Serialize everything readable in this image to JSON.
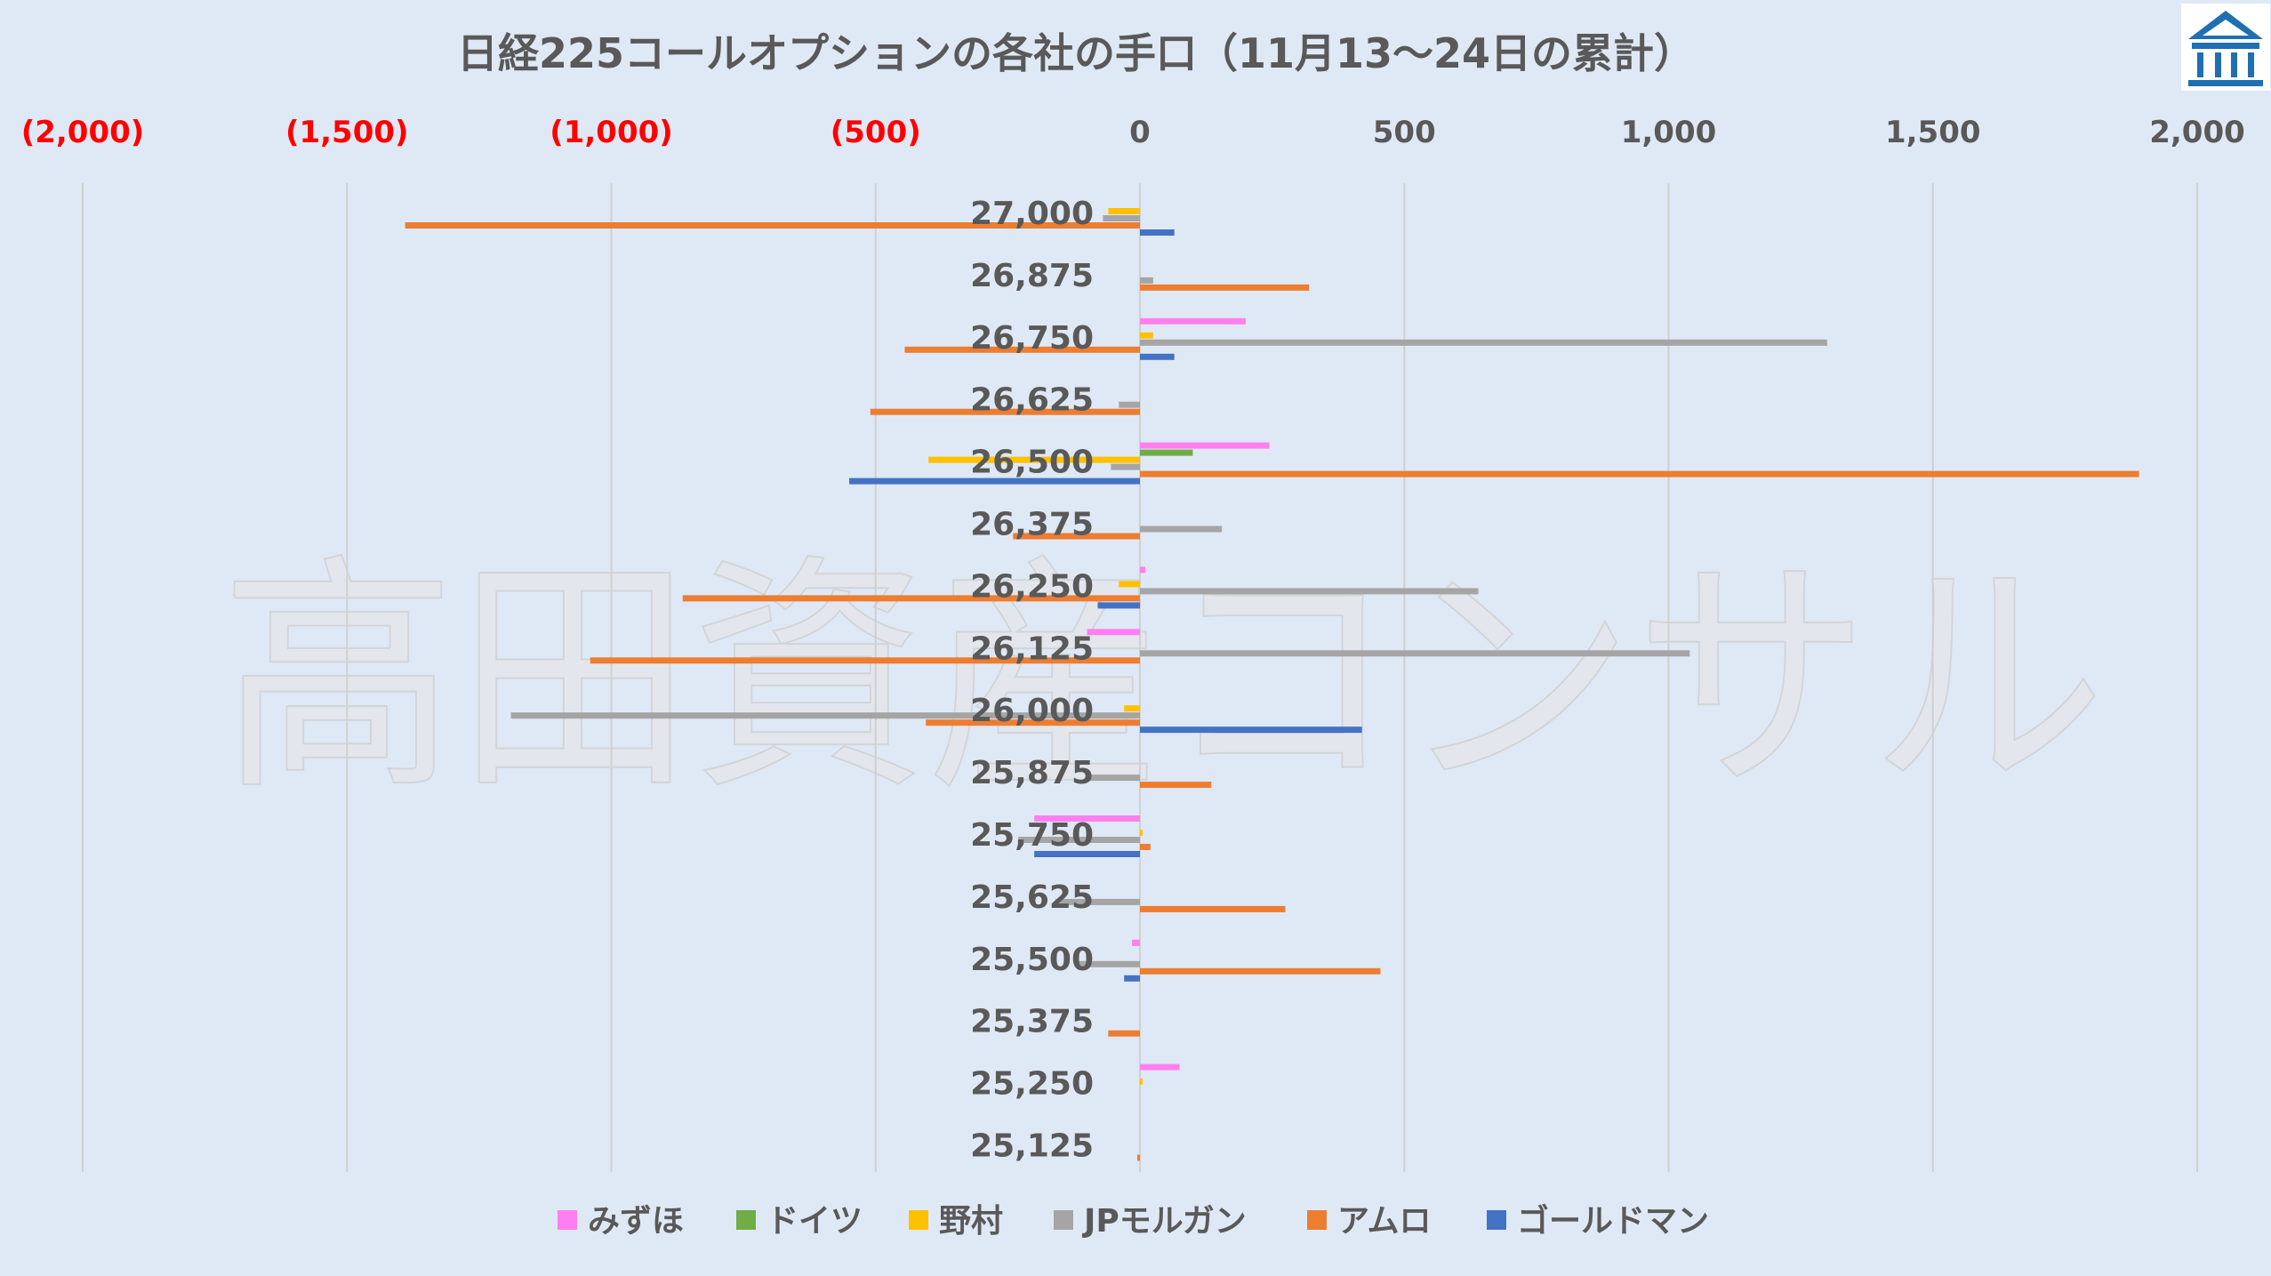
{
  "header": {
    "title": "日経225コールオプションの各社の手口（11月13〜24日の累計）"
  },
  "watermark": {
    "text": "高田資産コンサル"
  },
  "colors": {
    "みずほ": "#ff7ff0",
    "ドイツ": "#70ad47",
    "野村": "#ffc000",
    "JPモルガン": "#a5a5a5",
    "アムロ": "#ed7d31",
    "ゴールドマン": "#4472c4",
    "negative_tick": "#ff0000",
    "positive_tick": "#595959",
    "logo": "#1f6fb2"
  },
  "logo": {
    "icon": "building-logo-icon"
  },
  "chart_data": {
    "type": "bar",
    "orientation": "horizontal",
    "title": "日経225コールオプションの各社の手口（11月13〜24日の累計）",
    "xlim": [
      -2000,
      2000
    ],
    "x_ticks": [
      -2000,
      -1500,
      -1000,
      -500,
      0,
      500,
      1000,
      1500,
      2000
    ],
    "x_tick_labels": [
      "(2,000)",
      "(1,500)",
      "(1,000)",
      "(500)",
      "0",
      "500",
      "1,000",
      "1,500",
      "2,000"
    ],
    "x_axis_position": "top",
    "grid": true,
    "legend_position": "bottom",
    "categories": [
      "27,000",
      "26,875",
      "26,750",
      "26,625",
      "26,500",
      "26,375",
      "26,250",
      "26,125",
      "26,000",
      "25,875",
      "25,750",
      "25,625",
      "25,500",
      "25,375",
      "25,250",
      "25,125"
    ],
    "series": [
      {
        "name": "みずほ",
        "values": [
          0,
          0,
          200,
          0,
          245,
          0,
          10,
          -100,
          0,
          0,
          -200,
          0,
          -15,
          0,
          75,
          0
        ]
      },
      {
        "name": "ドイツ",
        "values": [
          0,
          0,
          0,
          0,
          100,
          0,
          0,
          0,
          0,
          0,
          0,
          0,
          0,
          0,
          0,
          0
        ]
      },
      {
        "name": "野村",
        "values": [
          -60,
          0,
          25,
          0,
          -400,
          0,
          -40,
          0,
          -30,
          0,
          5,
          0,
          0,
          0,
          5,
          0
        ]
      },
      {
        "name": "JPモルガン",
        "values": [
          -70,
          25,
          1300,
          -40,
          -55,
          155,
          640,
          1040,
          -1190,
          -100,
          -230,
          -160,
          -120,
          0,
          0,
          0
        ]
      },
      {
        "name": "アムロ",
        "values": [
          -1390,
          320,
          -445,
          -510,
          1890,
          -240,
          -865,
          -1040,
          -405,
          135,
          20,
          275,
          455,
          -60,
          0,
          -5
        ]
      },
      {
        "name": "ゴールドマン",
        "values": [
          65,
          0,
          65,
          0,
          -550,
          0,
          -80,
          0,
          420,
          0,
          -200,
          0,
          -30,
          0,
          0,
          0
        ]
      }
    ]
  }
}
